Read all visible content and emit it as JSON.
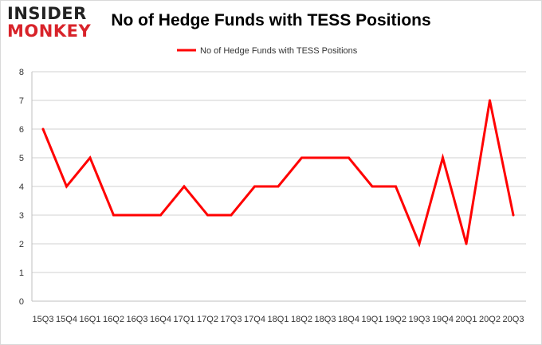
{
  "brand": {
    "line1": "INSIDER",
    "line2": "MONKEY"
  },
  "colors": {
    "series": "#ff0000",
    "grid": "#d0d0d0",
    "logo_red": "#d8232a"
  },
  "chart_data": {
    "type": "line",
    "title": "No of Hedge Funds with TESS Positions",
    "xlabel": "",
    "ylabel": "",
    "ylim": [
      0,
      8
    ],
    "yticks": [
      "0",
      "1",
      "2",
      "3",
      "4",
      "5",
      "6",
      "7",
      "8"
    ],
    "grid": true,
    "legend_position": "top-center",
    "categories": [
      "15Q3",
      "15Q4",
      "16Q1",
      "16Q2",
      "16Q3",
      "16Q4",
      "17Q1",
      "17Q2",
      "17Q3",
      "17Q4",
      "18Q1",
      "18Q2",
      "18Q3",
      "18Q4",
      "19Q1",
      "19Q2",
      "19Q3",
      "19Q4",
      "20Q1",
      "20Q2",
      "20Q3"
    ],
    "series": [
      {
        "name": "No of Hedge Funds with TESS Positions",
        "values": [
          6,
          4,
          5,
          3,
          3,
          3,
          4,
          3,
          3,
          4,
          4,
          5,
          5,
          5,
          4,
          4,
          2,
          5,
          2,
          7,
          3
        ]
      }
    ]
  }
}
